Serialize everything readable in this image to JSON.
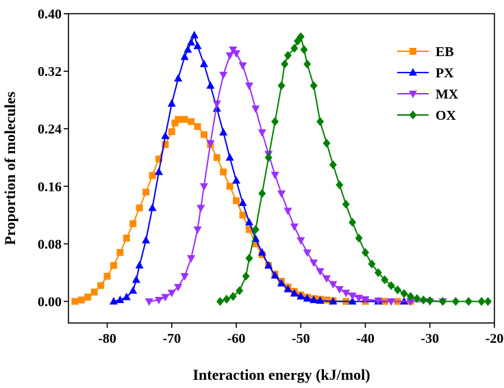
{
  "chart_data": {
    "type": "line",
    "title": "",
    "xlabel": "Interaction energy (kJ/mol)",
    "ylabel": "Proportion of molecules",
    "xlim": [
      -86,
      -20
    ],
    "ylim": [
      -0.03,
      0.4
    ],
    "xticks": [
      -80,
      -70,
      -60,
      -50,
      -40,
      -30,
      -20
    ],
    "xtick_labels": [
      "-80",
      "-70",
      "-60",
      "-50",
      "-40",
      "-30",
      "-20"
    ],
    "yticks": [
      0.0,
      0.08,
      0.16,
      0.24,
      0.32,
      0.4
    ],
    "ytick_labels": [
      "0.00",
      "0.08",
      "0.16",
      "0.24",
      "0.32",
      "0.40"
    ],
    "grid": false,
    "legend_position": "top-right",
    "series": [
      {
        "name": "EB",
        "color": "#FF8C00",
        "marker": "square",
        "points": [
          [
            -85,
            0.0
          ],
          [
            -84,
            0.002
          ],
          [
            -83,
            0.006
          ],
          [
            -82,
            0.013
          ],
          [
            -81,
            0.022
          ],
          [
            -80,
            0.035
          ],
          [
            -79,
            0.05
          ],
          [
            -78,
            0.068
          ],
          [
            -77,
            0.088
          ],
          [
            -76,
            0.108
          ],
          [
            -75,
            0.13
          ],
          [
            -74,
            0.152
          ],
          [
            -73,
            0.175
          ],
          [
            -72,
            0.198
          ],
          [
            -71,
            0.218
          ],
          [
            -70,
            0.236
          ],
          [
            -69.5,
            0.248
          ],
          [
            -69,
            0.253
          ],
          [
            -68,
            0.253
          ],
          [
            -67,
            0.25
          ],
          [
            -66,
            0.243
          ],
          [
            -65,
            0.232
          ],
          [
            -64,
            0.218
          ],
          [
            -63,
            0.2
          ],
          [
            -62,
            0.18
          ],
          [
            -61,
            0.16
          ],
          [
            -60,
            0.14
          ],
          [
            -59,
            0.12
          ],
          [
            -58,
            0.1
          ],
          [
            -57,
            0.08
          ],
          [
            -56,
            0.065
          ],
          [
            -55,
            0.05
          ],
          [
            -54,
            0.038
          ],
          [
            -53,
            0.028
          ],
          [
            -52,
            0.02
          ],
          [
            -51,
            0.014
          ],
          [
            -50,
            0.009
          ],
          [
            -49,
            0.006
          ],
          [
            -48,
            0.004
          ],
          [
            -47,
            0.003
          ],
          [
            -46,
            0.002
          ],
          [
            -45,
            0.001
          ],
          [
            -43,
            0.0
          ],
          [
            -40,
            0.0
          ],
          [
            -37,
            0.0
          ],
          [
            -35,
            0.0
          ],
          [
            -33,
            0.0
          ]
        ]
      },
      {
        "name": "PX",
        "color": "#0000FF",
        "marker": "triangle-up",
        "points": [
          [
            -79,
            0.0
          ],
          [
            -78,
            0.002
          ],
          [
            -77,
            0.006
          ],
          [
            -76,
            0.015
          ],
          [
            -75.5,
            0.03
          ],
          [
            -75,
            0.05
          ],
          [
            -74,
            0.085
          ],
          [
            -73,
            0.13
          ],
          [
            -72,
            0.18
          ],
          [
            -71,
            0.23
          ],
          [
            -70,
            0.275
          ],
          [
            -69,
            0.31
          ],
          [
            -68,
            0.34
          ],
          [
            -67.5,
            0.35
          ],
          [
            -67,
            0.36
          ],
          [
            -66.5,
            0.37
          ],
          [
            -66,
            0.355
          ],
          [
            -65,
            0.33
          ],
          [
            -64,
            0.3
          ],
          [
            -63,
            0.268
          ],
          [
            -62,
            0.235
          ],
          [
            -61,
            0.2
          ],
          [
            -60,
            0.168
          ],
          [
            -59,
            0.137
          ],
          [
            -58,
            0.11
          ],
          [
            -57,
            0.087
          ],
          [
            -56,
            0.068
          ],
          [
            -55,
            0.05
          ],
          [
            -54,
            0.036
          ],
          [
            -53,
            0.025
          ],
          [
            -52,
            0.017
          ],
          [
            -51,
            0.011
          ],
          [
            -50,
            0.007
          ],
          [
            -49,
            0.004
          ],
          [
            -48,
            0.002
          ],
          [
            -47,
            0.001
          ],
          [
            -45,
            0.0
          ],
          [
            -42,
            0.0
          ],
          [
            -38,
            0.0
          ],
          [
            -34,
            0.0
          ]
        ]
      },
      {
        "name": "MX",
        "color": "#9B30FF",
        "marker": "triangle-down",
        "points": [
          [
            -73.5,
            0.0
          ],
          [
            -72,
            0.002
          ],
          [
            -71,
            0.006
          ],
          [
            -70,
            0.012
          ],
          [
            -69,
            0.02
          ],
          [
            -68,
            0.035
          ],
          [
            -67,
            0.06
          ],
          [
            -66,
            0.1
          ],
          [
            -65.5,
            0.13
          ],
          [
            -65,
            0.16
          ],
          [
            -64,
            0.22
          ],
          [
            -63,
            0.275
          ],
          [
            -62,
            0.315
          ],
          [
            -61,
            0.342
          ],
          [
            -60.5,
            0.35
          ],
          [
            -60,
            0.345
          ],
          [
            -59,
            0.328
          ],
          [
            -58,
            0.3
          ],
          [
            -57,
            0.268
          ],
          [
            -56,
            0.235
          ],
          [
            -55,
            0.205
          ],
          [
            -54,
            0.176
          ],
          [
            -53,
            0.15
          ],
          [
            -52,
            0.126
          ],
          [
            -51,
            0.104
          ],
          [
            -50,
            0.085
          ],
          [
            -49,
            0.068
          ],
          [
            -48,
            0.054
          ],
          [
            -47,
            0.042
          ],
          [
            -46,
            0.032
          ],
          [
            -45,
            0.024
          ],
          [
            -44,
            0.017
          ],
          [
            -43,
            0.012
          ],
          [
            -42,
            0.008
          ],
          [
            -41,
            0.005
          ],
          [
            -40,
            0.003
          ],
          [
            -38,
            0.001
          ],
          [
            -36,
            0.0
          ],
          [
            -33,
            0.0
          ],
          [
            -30,
            0.0
          ],
          [
            -28,
            0.0
          ]
        ]
      },
      {
        "name": "OX",
        "color": "#008000",
        "marker": "diamond",
        "points": [
          [
            -62.5,
            0.0
          ],
          [
            -61.5,
            0.003
          ],
          [
            -60.5,
            0.007
          ],
          [
            -59.5,
            0.015
          ],
          [
            -58.5,
            0.035
          ],
          [
            -58,
            0.06
          ],
          [
            -57,
            0.1
          ],
          [
            -56,
            0.15
          ],
          [
            -55,
            0.2
          ],
          [
            -54,
            0.25
          ],
          [
            -53,
            0.3
          ],
          [
            -52.5,
            0.33
          ],
          [
            -52,
            0.342
          ],
          [
            -51,
            0.352
          ],
          [
            -50.5,
            0.362
          ],
          [
            -50,
            0.368
          ],
          [
            -49.5,
            0.35
          ],
          [
            -49,
            0.33
          ],
          [
            -48,
            0.3
          ],
          [
            -47,
            0.25
          ],
          [
            -46,
            0.22
          ],
          [
            -45,
            0.19
          ],
          [
            -44,
            0.162
          ],
          [
            -43,
            0.135
          ],
          [
            -42,
            0.11
          ],
          [
            -41,
            0.088
          ],
          [
            -40,
            0.068
          ],
          [
            -39,
            0.052
          ],
          [
            -38,
            0.04
          ],
          [
            -37,
            0.03
          ],
          [
            -36,
            0.022
          ],
          [
            -35,
            0.016
          ],
          [
            -34,
            0.011
          ],
          [
            -33,
            0.007
          ],
          [
            -32,
            0.004
          ],
          [
            -31,
            0.002
          ],
          [
            -30,
            0.001
          ],
          [
            -28,
            0.0
          ],
          [
            -26,
            0.0
          ],
          [
            -24,
            0.0
          ],
          [
            -22,
            0.0
          ],
          [
            -21,
            0.0
          ]
        ]
      }
    ]
  }
}
